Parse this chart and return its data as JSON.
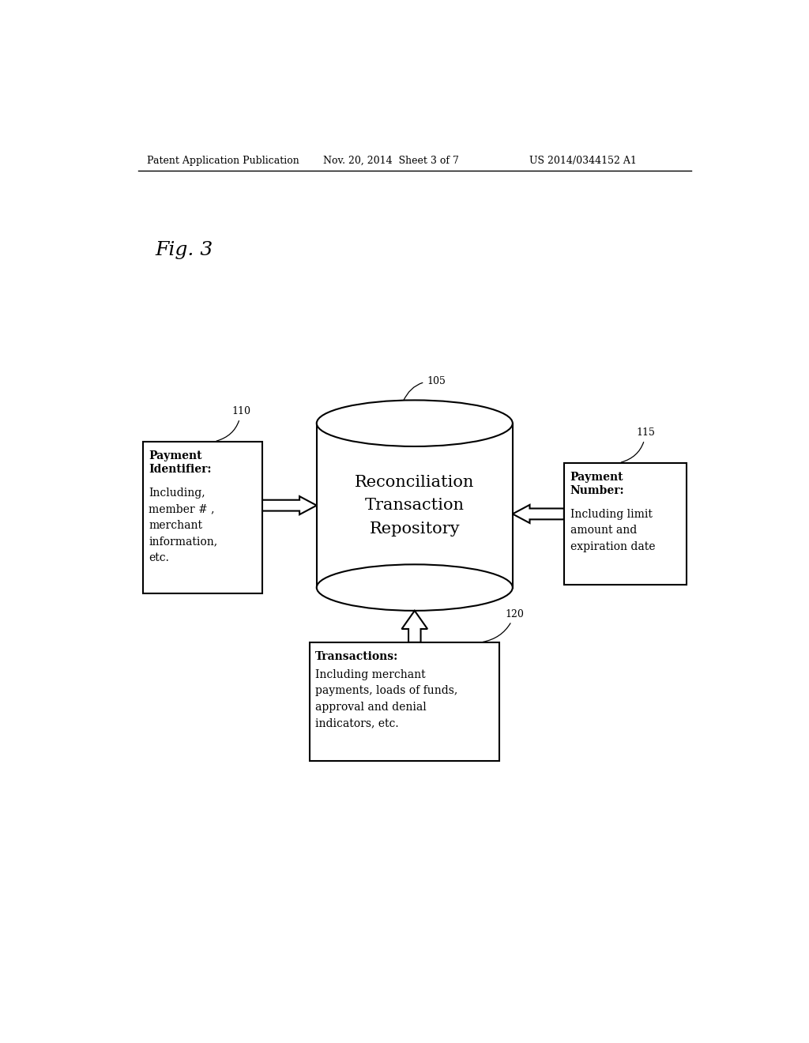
{
  "bg_color": "#ffffff",
  "header_left": "Patent Application Publication",
  "header_mid": "Nov. 20, 2014  Sheet 3 of 7",
  "header_right": "US 2014/0344152 A1",
  "fig_label": "Fig. 3",
  "cylinder_label": "Reconciliation\nTransaction\nRepository",
  "cylinder_ref": "105",
  "left_box_ref": "110",
  "left_box_title": "Payment\nIdentifier:",
  "left_box_body": "Including,\nmember # ,\nmerchant\ninformation,\netc.",
  "right_box_ref": "115",
  "right_box_title": "Payment\nNumber:",
  "right_box_body": "Including limit\namount and\nexpiration date",
  "bottom_box_ref": "120",
  "bottom_box_title": "Transactions:",
  "bottom_box_body": "Including merchant\npayments, loads of funds,\napproval and denial\nindicators, etc."
}
